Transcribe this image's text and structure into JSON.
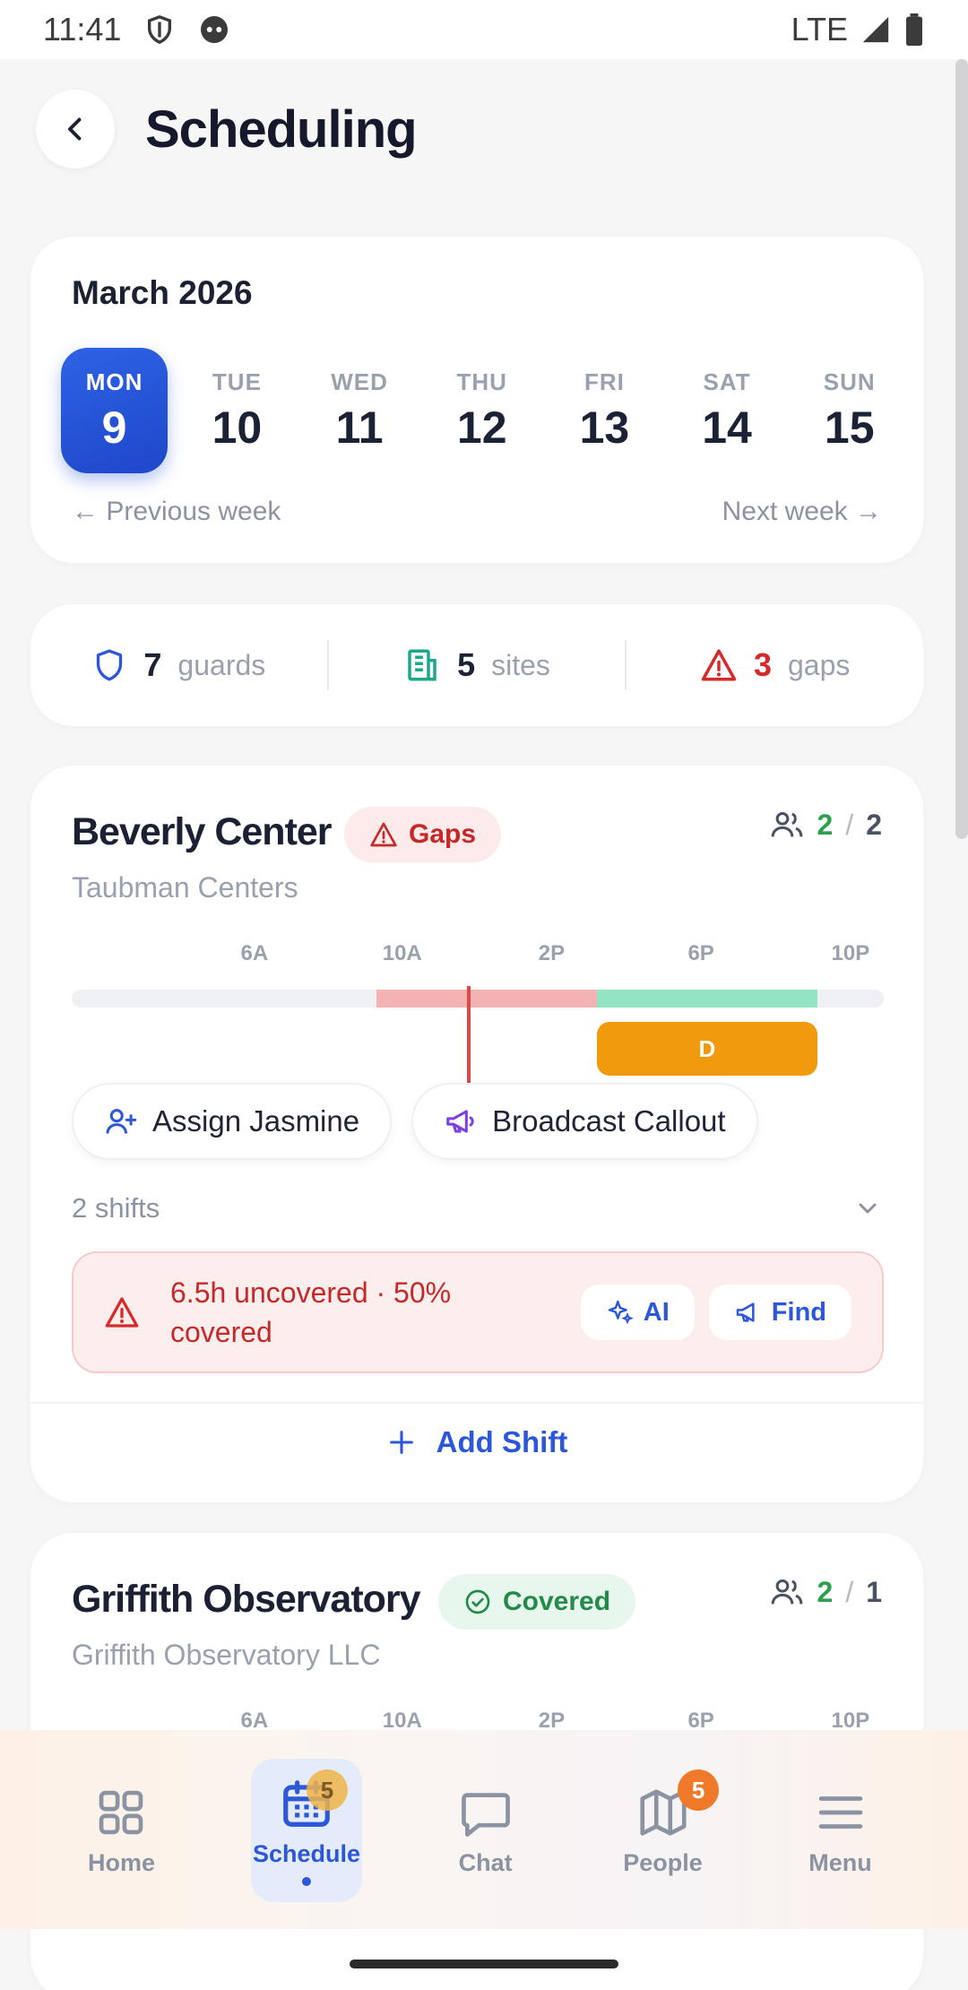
{
  "status_bar": {
    "time": "11:41",
    "network": "LTE"
  },
  "header": {
    "title": "Scheduling"
  },
  "calendar": {
    "month": "March 2026",
    "days": [
      {
        "dow": "MON",
        "num": "9",
        "active": true
      },
      {
        "dow": "TUE",
        "num": "10"
      },
      {
        "dow": "WED",
        "num": "11"
      },
      {
        "dow": "THU",
        "num": "12"
      },
      {
        "dow": "FRI",
        "num": "13"
      },
      {
        "dow": "SAT",
        "num": "14"
      },
      {
        "dow": "SUN",
        "num": "15"
      }
    ],
    "prev_week": "← Previous week",
    "next_week": "Next week →"
  },
  "stats": {
    "guards": {
      "value": "7",
      "label": "guards"
    },
    "sites": {
      "value": "5",
      "label": "sites"
    },
    "gaps": {
      "value": "3",
      "label": "gaps"
    }
  },
  "sites": [
    {
      "name": "Beverly Center",
      "status": "Gaps",
      "client": "Taubman Centers",
      "assigned": "2",
      "required": "2",
      "ticks": [
        "6A",
        "10A",
        "2P",
        "6P",
        "10P"
      ],
      "shift_label": "D",
      "assign_btn": "Assign Jasmine",
      "broadcast_btn": "Broadcast Callout",
      "shifts_count": "2 shifts",
      "alert_text": "6.5h uncovered · 50% covered",
      "ai_btn": "AI",
      "find_btn": "Find",
      "add_shift": "Add Shift"
    },
    {
      "name": "Griffith Observatory",
      "status": "Covered",
      "client": "Griffith Observatory LLC",
      "assigned": "2",
      "required": "1",
      "ticks": [
        "6A",
        "10A",
        "2P",
        "6P",
        "10P"
      ]
    }
  ],
  "nav": {
    "items": [
      {
        "label": "Home",
        "icon": "grid-icon"
      },
      {
        "label": "Schedule",
        "icon": "calendar-icon",
        "badge": "5",
        "active": true
      },
      {
        "label": "Chat",
        "icon": "chat-icon"
      },
      {
        "label": "People",
        "icon": "map-icon",
        "badge": "5"
      },
      {
        "label": "Menu",
        "icon": "menu-icon"
      }
    ]
  },
  "colors": {
    "accent": "#2c57d9",
    "gap_red": "#f4b3b3",
    "covered_green": "#93e4c3",
    "shift_orange": "#f29a0d"
  }
}
